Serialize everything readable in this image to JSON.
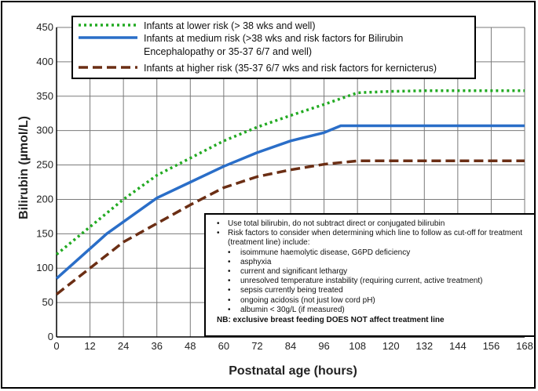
{
  "chart_data": {
    "type": "line",
    "xlabel": "Postnatal age (hours)",
    "ylabel": "Bilirubin (µmol/L)",
    "xlim": [
      0,
      168
    ],
    "ylim": [
      0,
      450
    ],
    "x_ticks": [
      0,
      12,
      24,
      36,
      48,
      60,
      72,
      84,
      96,
      108,
      120,
      132,
      144,
      156,
      168
    ],
    "y_ticks": [
      0,
      50,
      100,
      150,
      200,
      250,
      300,
      350,
      400,
      450
    ],
    "grid": true,
    "legend_position": "top",
    "series": [
      {
        "name": "Infants at lower risk (> 38 wks and well)",
        "legend_lines": [
          "Infants at lower risk (> 38 wks and well)"
        ],
        "color": "#22aa22",
        "style": "dotted",
        "x": [
          0,
          12,
          24,
          36,
          48,
          60,
          72,
          84,
          96,
          108,
          120,
          132,
          144,
          156,
          168
        ],
        "y": [
          120,
          160,
          200,
          235,
          260,
          285,
          305,
          322,
          338,
          355,
          357,
          358,
          358,
          358,
          358
        ]
      },
      {
        "name": "Infants at medium risk (>38 wks and risk factors for Bilirubin Encephalopathy or 35-37 6/7 and well)",
        "legend_lines": [
          "Infants at medium risk (>38 wks and risk factors for Bilirubin",
          "Encephalopathy or 35-37 6/7 and well)"
        ],
        "color": "#2a6ec8",
        "style": "solid",
        "x": [
          0,
          18,
          36,
          48,
          60,
          72,
          84,
          96,
          102,
          108,
          120,
          132,
          144,
          156,
          168
        ],
        "y": [
          85,
          150,
          202,
          225,
          248,
          268,
          285,
          297,
          307,
          307,
          307,
          307,
          307,
          307,
          307
        ]
      },
      {
        "name": "Infants at higher risk (35-37 6/7 wks and risk factors for kernicterus)",
        "legend_lines": [
          "Infants at higher risk (35-37 6/7 wks and risk factors for kernicterus)"
        ],
        "color": "#6b2e14",
        "style": "dashed",
        "x": [
          0,
          12,
          24,
          36,
          48,
          60,
          72,
          84,
          96,
          108,
          120,
          132,
          144,
          156,
          168
        ],
        "y": [
          62,
          100,
          138,
          165,
          192,
          217,
          233,
          243,
          251,
          256,
          256,
          256,
          256,
          256,
          256
        ]
      }
    ]
  },
  "notes": {
    "items": [
      "Use total bilirubin, do not subtract direct or conjugated bilirubin",
      "Risk factors to consider when determining which line to follow as cut-off for treatment (treatment line) include:"
    ],
    "sub_items": [
      "isoimmune haemolytic disease, G6PD deficiency",
      "asphyxia",
      "current and significant lethargy",
      "unresolved temperature instability (requiring current, active treatment)",
      "sepsis currently being treated",
      "ongoing acidosis (not just low cord pH)",
      "albumin < 30g/L (if measured)"
    ],
    "nb": "NB: exclusive breast feeding DOES NOT affect treatment line"
  }
}
